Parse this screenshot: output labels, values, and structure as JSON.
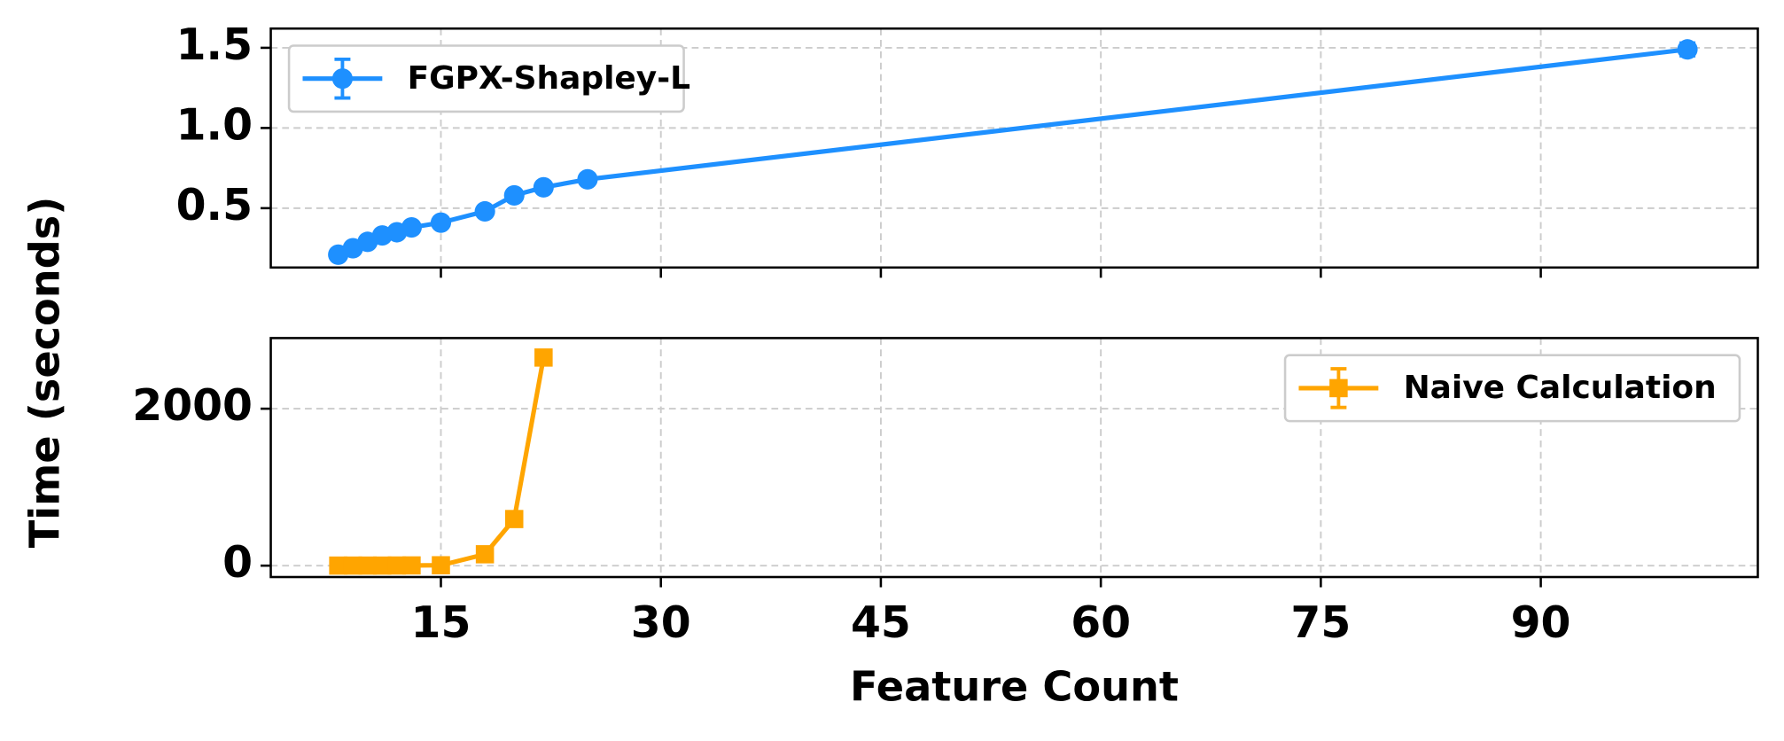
{
  "chart_data": [
    {
      "type": "line",
      "ylabel": "Time (seconds)",
      "legend": "upper left",
      "marker": "circle",
      "grid": true,
      "xlim": [
        3.4,
        104.8
      ],
      "xticks": [
        15,
        30,
        45,
        60,
        75,
        90
      ],
      "ylim": [
        0.13,
        1.62
      ],
      "yticks": [
        0.5,
        {
          "value": 1.0,
          "label": "1.0"
        },
        1.5
      ],
      "x": [
        8,
        9,
        10,
        11,
        12,
        13,
        15,
        18,
        20,
        22,
        25,
        100
      ],
      "series": [
        {
          "name": "FGPX-Shapley-L",
          "color": "#1e90ff",
          "values": [
            0.21,
            0.25,
            0.29,
            0.33,
            0.35,
            0.38,
            0.41,
            0.48,
            0.58,
            0.63,
            0.68,
            1.49
          ],
          "errors": [
            0.01,
            0.01,
            0.01,
            0.01,
            0.01,
            0.01,
            0.02,
            0.02,
            0.02,
            0.02,
            0.02,
            0.04
          ]
        }
      ]
    },
    {
      "type": "line",
      "xlabel": "Feature Count",
      "legend": "upper right",
      "marker": "square",
      "grid": true,
      "xlim": [
        3.4,
        104.8
      ],
      "xticks": [
        15,
        30,
        45,
        60,
        75,
        90
      ],
      "ylim": [
        -145,
        2900
      ],
      "yticks": [
        0,
        2000
      ],
      "x": [
        8,
        9,
        10,
        11,
        12,
        13,
        15,
        18,
        20,
        22
      ],
      "series": [
        {
          "name": "Naive Calculation",
          "color": "#ffa500",
          "values": [
            1,
            1,
            1,
            1,
            2,
            3,
            5,
            145,
            594,
            2652
          ],
          "errors": [
            1,
            1,
            1,
            1,
            1,
            1,
            2,
            10,
            20,
            80
          ]
        }
      ]
    }
  ]
}
